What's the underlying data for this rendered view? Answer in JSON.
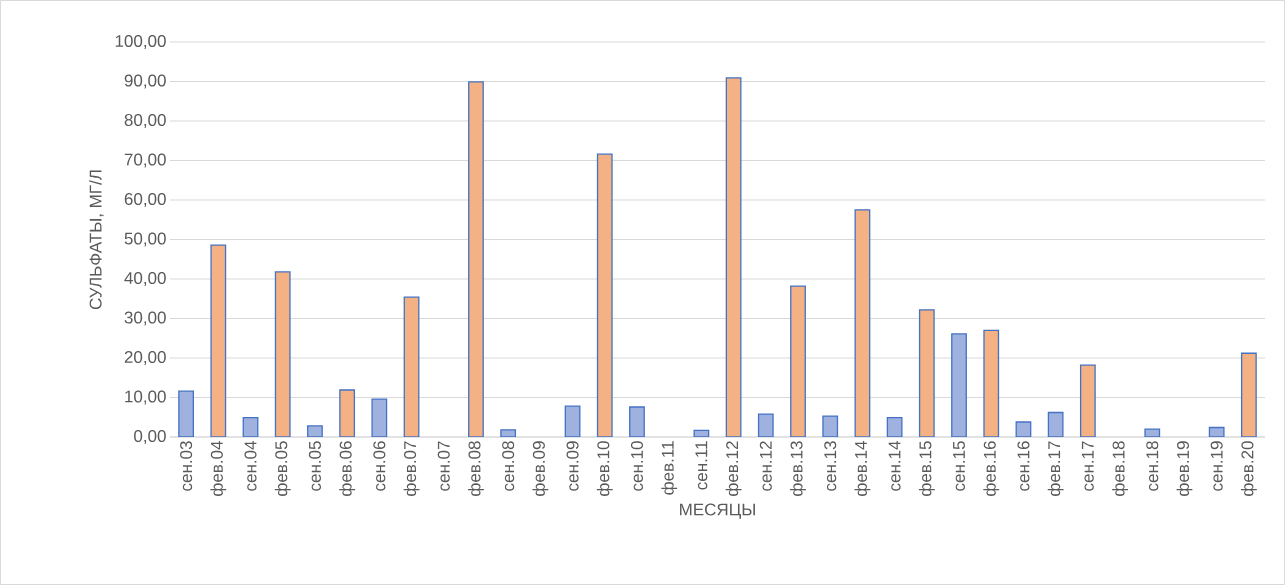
{
  "chart_data": {
    "type": "bar",
    "xlabel": "МЕСЯЦЫ",
    "ylabel": "СУЛЬФАТЫ, МГ/Л",
    "categories": [
      "сен.03",
      "фев.04",
      "сен.04",
      "фев.05",
      "сен.05",
      "фев.06",
      "сен.06",
      "фев.07",
      "сен.07",
      "фев.08",
      "сен.08",
      "фев.09",
      "сен.09",
      "фев.10",
      "сен.10",
      "фев.11",
      "сен.11",
      "фев.12",
      "сен.12",
      "фев.13",
      "сен.13",
      "фев.14",
      "сен.14",
      "фев.15",
      "сен.15",
      "фев.16",
      "сен.16",
      "фев.17",
      "сен.17",
      "фев.18",
      "сен.18",
      "фев.19",
      "сен.19",
      "фев.20"
    ],
    "values": [
      11.6,
      48.6,
      4.9,
      41.8,
      2.8,
      11.9,
      9.6,
      35.4,
      null,
      89.9,
      1.8,
      null,
      7.8,
      71.6,
      7.6,
      null,
      1.7,
      90.9,
      5.8,
      38.2,
      5.3,
      57.5,
      4.9,
      32.2,
      26.1,
      27.0,
      3.8,
      6.2,
      18.2,
      null,
      2.0,
      null,
      2.4,
      21.2
    ],
    "colors": [
      "#9fb1de",
      "#f4b183",
      "#9fb1de",
      "#f4b183",
      "#9fb1de",
      "#f4b183",
      "#9fb1de",
      "#f4b183",
      "#9fb1de",
      "#f4b183",
      "#9fb1de",
      "#f4b183",
      "#9fb1de",
      "#f4b183",
      "#9fb1de",
      "#f4b183",
      "#9fb1de",
      "#f4b183",
      "#9fb1de",
      "#f4b183",
      "#9fb1de",
      "#f4b183",
      "#9fb1de",
      "#f4b183",
      "#9fb1de",
      "#f4b183",
      "#9fb1de",
      "#9fb1de",
      "#f4b183",
      "#9fb1de",
      "#9fb1de",
      "#9fb1de",
      "#9fb1de",
      "#f4b183"
    ],
    "ylim": [
      0,
      100
    ],
    "yticks": [
      {
        "value": 0,
        "label": "0,00"
      },
      {
        "value": 10,
        "label": "10,00"
      },
      {
        "value": 20,
        "label": "20,00"
      },
      {
        "value": 30,
        "label": "30,00"
      },
      {
        "value": 40,
        "label": "40,00"
      },
      {
        "value": 50,
        "label": "50,00"
      },
      {
        "value": 60,
        "label": "60,00"
      },
      {
        "value": 70,
        "label": "70,00"
      },
      {
        "value": 80,
        "label": "80,00"
      },
      {
        "value": 90,
        "label": "90,00"
      },
      {
        "value": 100,
        "label": "100,00"
      }
    ],
    "grid": "y"
  }
}
